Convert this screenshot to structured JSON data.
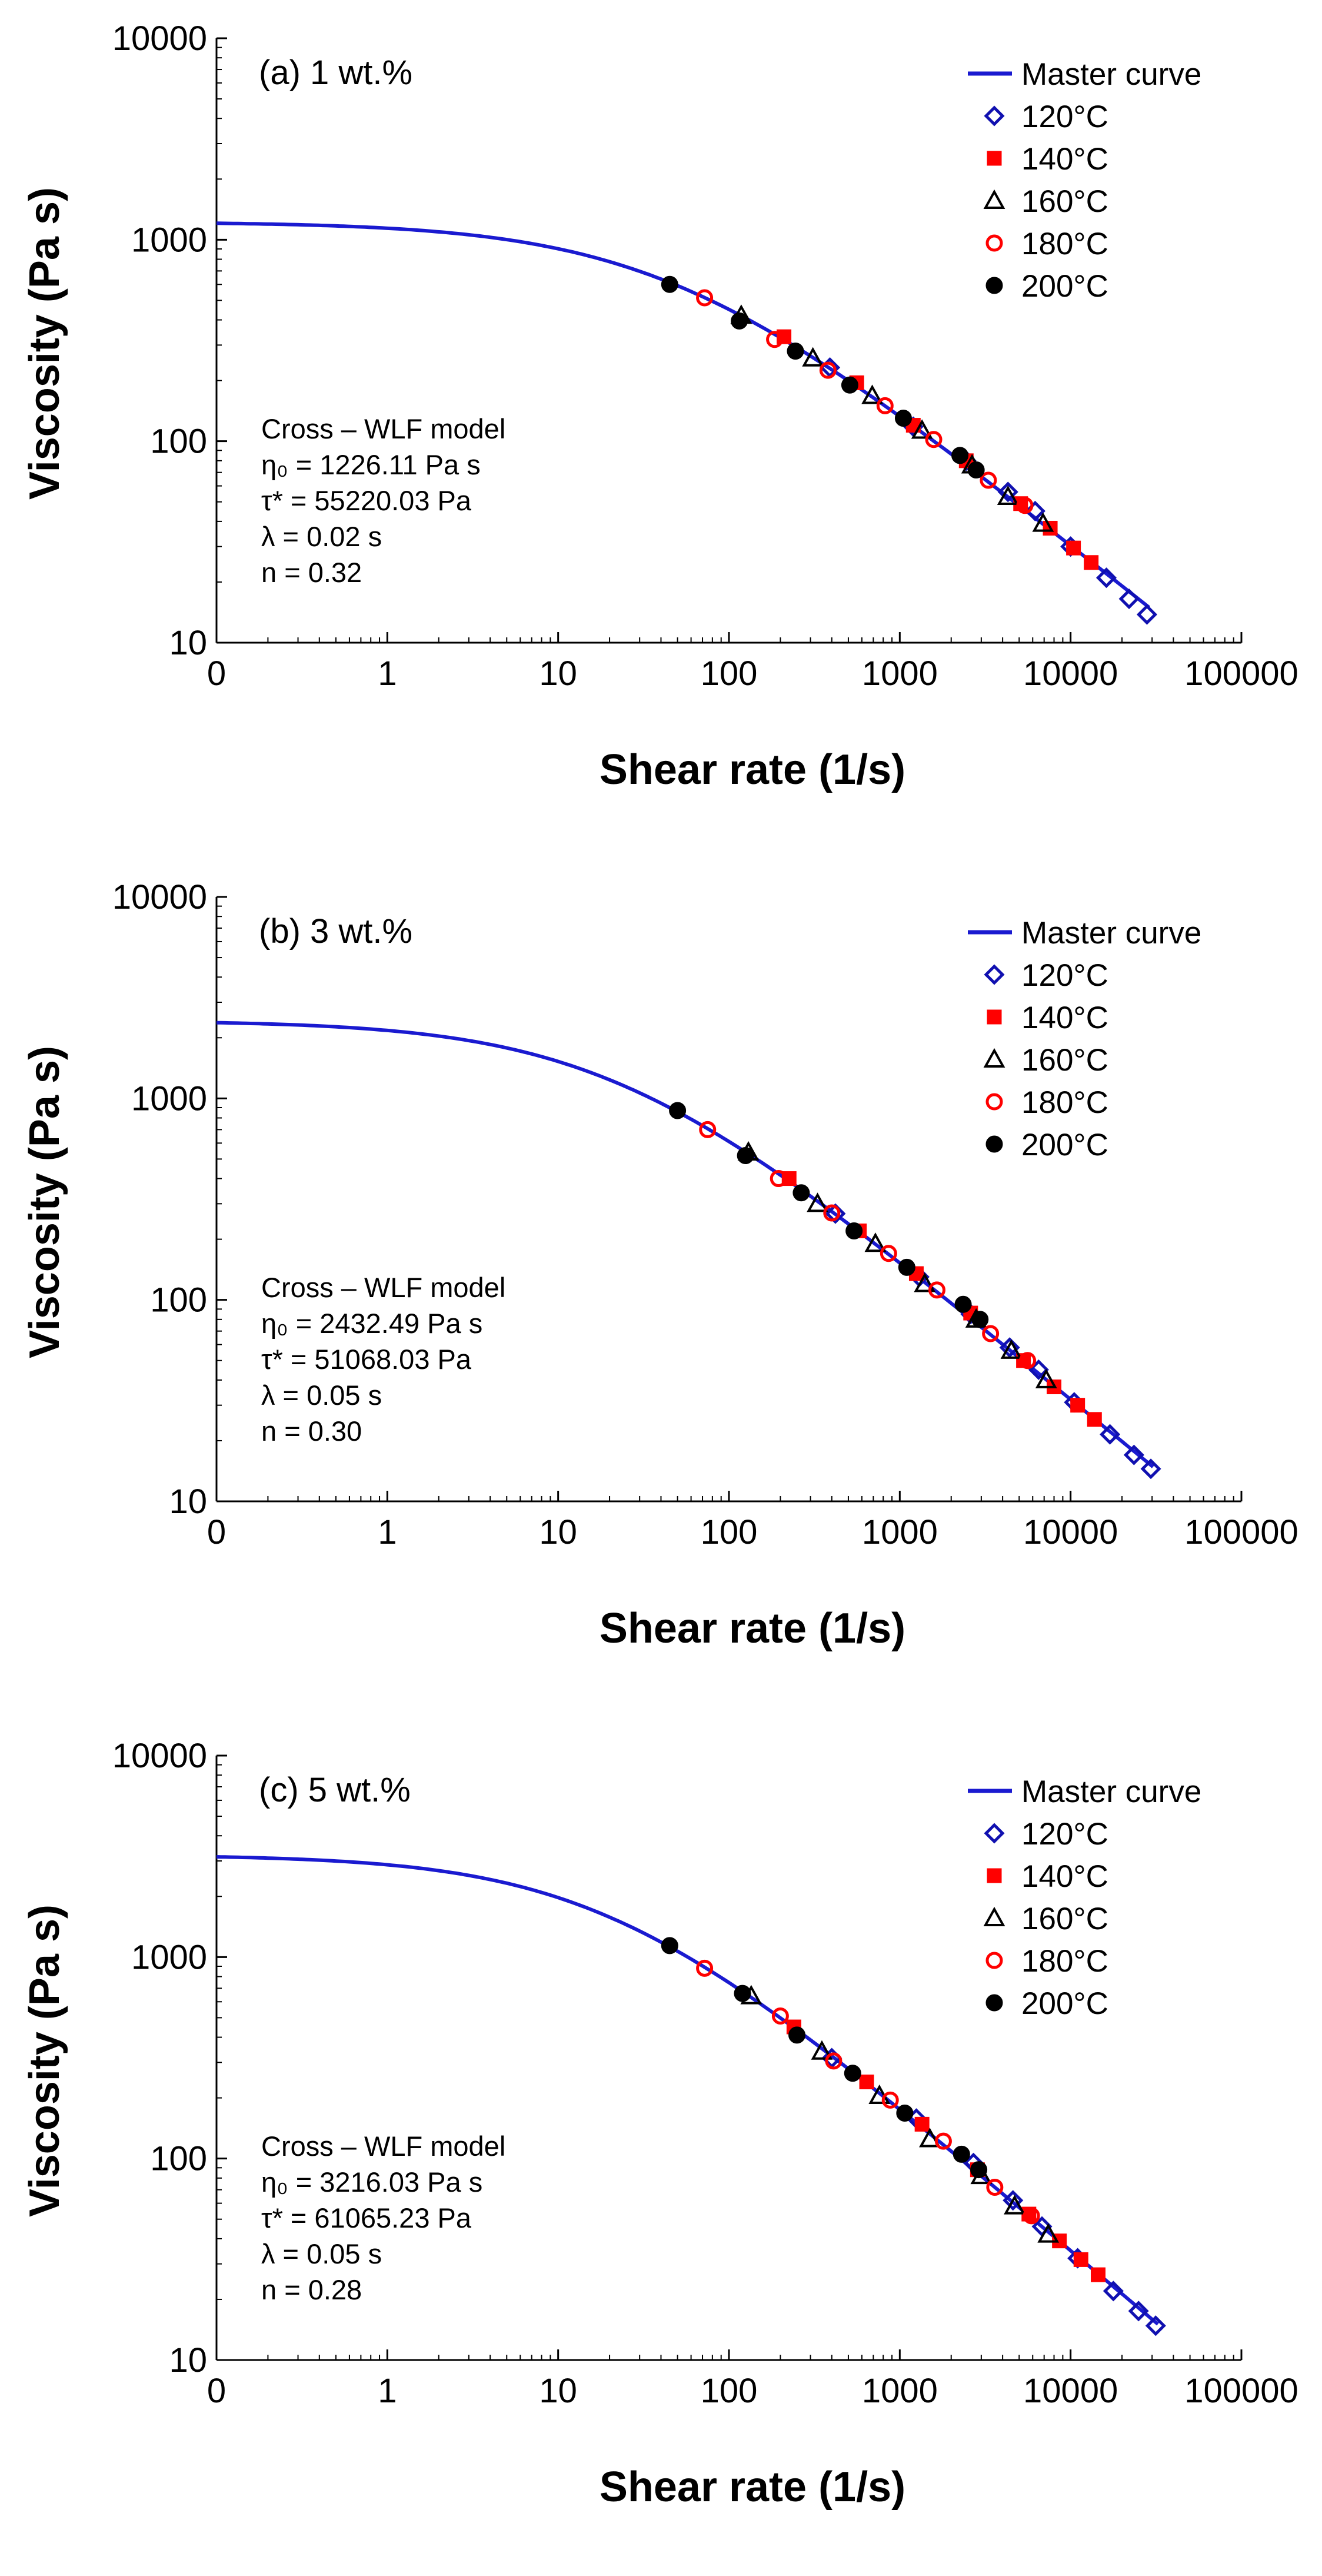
{
  "chart_data": [
    {
      "type": "scatter",
      "panel_label": "(a) 1 wt.%",
      "xscale": "log",
      "yscale": "log",
      "xlabel": "Shear rate (1/s)",
      "ylabel": "Viscosity (Pa s)",
      "xlim": [
        0.1,
        100000
      ],
      "ylim": [
        10,
        10000
      ],
      "x_tick_labels": [
        "0",
        "1",
        "10",
        "100",
        "1000",
        "10000",
        "100000"
      ],
      "y_tick_labels": [
        "10",
        "100",
        "1000",
        "10000"
      ],
      "model": {
        "title": "Cross – WLF model",
        "eta0": "η₀ = 1226.11 Pa s",
        "tau": "τ* = 55220.03 Pa",
        "lambda": "λ = 0.02 s",
        "n": "n = 0.32"
      },
      "master_curve": {
        "name": "Master curve",
        "eta0": 1226.11,
        "tau": 55220.03,
        "n": 0.32
      },
      "legend_position": "top-right",
      "series": [
        {
          "name": "120°C",
          "marker": "diamond",
          "color": "#1010b0",
          "points": [
            [
              390,
              232
            ],
            [
              1200,
              118
            ],
            [
              2450,
              80
            ],
            [
              4300,
              56
            ],
            [
              6200,
              45
            ],
            [
              10000,
              30
            ],
            [
              16200,
              21
            ],
            [
              22000,
              16.5
            ],
            [
              28000,
              13.8
            ]
          ]
        },
        {
          "name": "140°C",
          "marker": "square",
          "color": "#ff0000",
          "points": [
            [
              210,
              330
            ],
            [
              560,
              195
            ],
            [
              1200,
              120
            ],
            [
              2450,
              80
            ],
            [
              5100,
              49
            ],
            [
              7600,
              37
            ],
            [
              10400,
              29.5
            ],
            [
              13200,
              25
            ]
          ]
        },
        {
          "name": "160°C",
          "marker": "triangle",
          "color": "#000000",
          "points": [
            [
              118,
              420
            ],
            [
              310,
              258
            ],
            [
              690,
              168
            ],
            [
              1350,
              113
            ],
            [
              2650,
              76
            ],
            [
              4300,
              53
            ],
            [
              6900,
              39
            ]
          ]
        },
        {
          "name": "180°C",
          "marker": "circle-open",
          "color": "#ff0000",
          "points": [
            [
              72,
              515
            ],
            [
              185,
              320
            ],
            [
              380,
              225
            ],
            [
              820,
              150
            ],
            [
              1580,
              102
            ],
            [
              3300,
              64
            ],
            [
              5400,
              48
            ]
          ]
        },
        {
          "name": "200°C",
          "marker": "circle-filled",
          "color": "#000000",
          "points": [
            [
              45,
              600
            ],
            [
              115,
              395
            ],
            [
              245,
              280
            ],
            [
              510,
              190
            ],
            [
              1050,
              130
            ],
            [
              2250,
              85
            ],
            [
              2800,
              72
            ]
          ]
        }
      ]
    },
    {
      "type": "scatter",
      "panel_label": "(b) 3 wt.%",
      "xscale": "log",
      "yscale": "log",
      "xlabel": "Shear rate (1/s)",
      "ylabel": "Viscosity (Pa s)",
      "xlim": [
        0.1,
        100000
      ],
      "ylim": [
        10,
        10000
      ],
      "x_tick_labels": [
        "0",
        "1",
        "10",
        "100",
        "1000",
        "10000",
        "100000"
      ],
      "y_tick_labels": [
        "10",
        "100",
        "1000",
        "10000"
      ],
      "model": {
        "title": "Cross – WLF model",
        "eta0": "η₀ = 2432.49 Pa s",
        "tau": "τ* = 51068.03 Pa",
        "lambda": "λ = 0.05 s",
        "n": "n = 0.30"
      },
      "master_curve": {
        "name": "Master curve",
        "eta0": 2432.49,
        "tau": 51068.03,
        "n": 0.3
      },
      "legend_position": "top-right",
      "series": [
        {
          "name": "120°C",
          "marker": "diamond",
          "color": "#1010b0",
          "points": [
            [
              420,
              268
            ],
            [
              1300,
              130
            ],
            [
              2600,
              85
            ],
            [
              4400,
              58
            ],
            [
              6500,
              45
            ],
            [
              10500,
              31
            ],
            [
              17000,
              21.5
            ],
            [
              23500,
              17
            ],
            [
              29500,
              14.5
            ]
          ]
        },
        {
          "name": "140°C",
          "marker": "square",
          "color": "#ff0000",
          "points": [
            [
              225,
              400
            ],
            [
              580,
              220
            ],
            [
              1250,
              135
            ],
            [
              2600,
              86
            ],
            [
              5300,
              50
            ],
            [
              8000,
              37
            ],
            [
              11000,
              30
            ],
            [
              13800,
              25.5
            ]
          ]
        },
        {
          "name": "160°C",
          "marker": "triangle",
          "color": "#000000",
          "points": [
            [
              130,
              540
            ],
            [
              330,
              300
            ],
            [
              720,
              190
            ],
            [
              1400,
              120
            ],
            [
              2800,
              80
            ],
            [
              4500,
              56
            ],
            [
              7200,
              40
            ]
          ]
        },
        {
          "name": "180°C",
          "marker": "circle-open",
          "color": "#ff0000",
          "points": [
            [
              75,
              700
            ],
            [
              195,
              400
            ],
            [
              400,
              270
            ],
            [
              860,
              170
            ],
            [
              1650,
              112
            ],
            [
              3400,
              68
            ],
            [
              5600,
              50
            ]
          ]
        },
        {
          "name": "200°C",
          "marker": "circle-filled",
          "color": "#000000",
          "points": [
            [
              50,
              870
            ],
            [
              125,
              520
            ],
            [
              265,
              340
            ],
            [
              540,
              220
            ],
            [
              1100,
              145
            ],
            [
              2350,
              95
            ],
            [
              2950,
              80
            ]
          ]
        }
      ]
    },
    {
      "type": "scatter",
      "panel_label": "(c) 5 wt.%",
      "xscale": "log",
      "yscale": "log",
      "xlabel": "Shear rate (1/s)",
      "ylabel": "Viscosity (Pa s)",
      "xlim": [
        0.1,
        100000
      ],
      "ylim": [
        10,
        10000
      ],
      "x_tick_labels": [
        "0",
        "1",
        "10",
        "100",
        "1000",
        "10000",
        "100000"
      ],
      "y_tick_labels": [
        "10",
        "100",
        "1000",
        "10000"
      ],
      "model": {
        "title": "Cross – WLF model",
        "eta0": "η₀ = 3216.03 Pa s",
        "tau": "τ* = 61065.23 Pa",
        "lambda": "λ = 0.05 s",
        "n": "n = 0.28"
      },
      "master_curve": {
        "name": "Master curve",
        "eta0": 3216.03,
        "tau": 61065.23,
        "n": 0.28
      },
      "legend_position": "top-right",
      "series": [
        {
          "name": "120°C",
          "marker": "diamond",
          "color": "#1010b0",
          "points": [
            [
              400,
              315
            ],
            [
              1250,
              158
            ],
            [
              2700,
              95
            ],
            [
              4600,
              62
            ],
            [
              6800,
              46
            ],
            [
              11000,
              32
            ],
            [
              17800,
              22
            ],
            [
              25000,
              17.5
            ],
            [
              31500,
              14.8
            ]
          ]
        },
        {
          "name": "140°C",
          "marker": "square",
          "color": "#ff0000",
          "points": [
            [
              240,
              450
            ],
            [
              640,
              240
            ],
            [
              1350,
              148
            ],
            [
              2850,
              88
            ],
            [
              5700,
              53
            ],
            [
              8600,
              39
            ],
            [
              11500,
              31.5
            ],
            [
              14500,
              26.5
            ]
          ]
        },
        {
          "name": "160°C",
          "marker": "triangle",
          "color": "#000000",
          "points": [
            [
              135,
              640
            ],
            [
              350,
              340
            ],
            [
              760,
              205
            ],
            [
              1500,
              125
            ],
            [
              3000,
              82
            ],
            [
              4700,
              58
            ],
            [
              7400,
              42
            ]
          ]
        },
        {
          "name": "180°C",
          "marker": "circle-open",
          "color": "#ff0000",
          "points": [
            [
              72,
              880
            ],
            [
              200,
              510
            ],
            [
              410,
              305
            ],
            [
              880,
              195
            ],
            [
              1800,
              122
            ],
            [
              3600,
              72
            ],
            [
              5900,
              52
            ]
          ]
        },
        {
          "name": "200°C",
          "marker": "circle-filled",
          "color": "#000000",
          "points": [
            [
              45,
              1140
            ],
            [
              120,
              660
            ],
            [
              250,
              410
            ],
            [
              530,
              265
            ],
            [
              1070,
              168
            ],
            [
              2300,
              105
            ],
            [
              2900,
              88
            ]
          ]
        }
      ]
    }
  ],
  "legend": {
    "master_curve": "Master curve",
    "series": [
      "120°C",
      "140°C",
      "160°C",
      "180°C",
      "200°C"
    ]
  },
  "colors": {
    "curve": "#1a1ad0",
    "diamond": "#1010b0",
    "red": "#ff0000",
    "black": "#000000"
  }
}
